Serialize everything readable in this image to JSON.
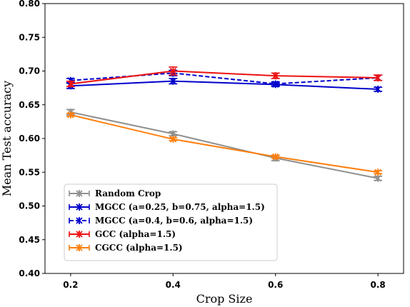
{
  "chart_data": {
    "type": "line",
    "xlabel": "Crop Size",
    "ylabel": "Mean Test accuracy",
    "xlim": [
      0.15,
      0.85
    ],
    "ylim": [
      0.4,
      0.8
    ],
    "xticks": [
      "0.2",
      "0.4",
      "0.6",
      "0.8"
    ],
    "yticks": [
      "0.40",
      "0.45",
      "0.50",
      "0.55",
      "0.60",
      "0.65",
      "0.70",
      "0.75",
      "0.80"
    ],
    "grid": false,
    "legend_position": "lower-left",
    "x": [
      0.2,
      0.4,
      0.6,
      0.8
    ],
    "series": [
      {
        "name": "Random Crop",
        "color": "#909090",
        "dash": "solid",
        "values": [
          0.639,
          0.607,
          0.571,
          0.541
        ],
        "errors": [
          0.004,
          0.003,
          0.004,
          0.003
        ]
      },
      {
        "name": "MGCC (a=0.25, b=0.75, alpha=1.5)",
        "color": "#0000cc",
        "dash": "solid",
        "values": [
          0.678,
          0.685,
          0.68,
          0.673
        ],
        "errors": [
          0.004,
          0.004,
          0.003,
          0.003
        ]
      },
      {
        "name": "MGCC (a=0.4, b=0.6, alpha=1.5)",
        "color": "#0000cc",
        "dash": "dashed",
        "values": [
          0.686,
          0.697,
          0.681,
          0.69
        ],
        "errors": [
          0.003,
          0.004,
          0.003,
          0.004
        ]
      },
      {
        "name": "GCC (alpha=1.5)",
        "color": "#ee1111",
        "dash": "solid",
        "values": [
          0.681,
          0.7,
          0.693,
          0.69
        ],
        "errors": [
          0.004,
          0.006,
          0.004,
          0.004
        ]
      },
      {
        "name": "CGCC (alpha=1.5)",
        "color": "#ff7f0e",
        "dash": "solid",
        "values": [
          0.635,
          0.599,
          0.573,
          0.55
        ],
        "errors": [
          0.002,
          0.002,
          0.002,
          0.002
        ]
      }
    ]
  }
}
